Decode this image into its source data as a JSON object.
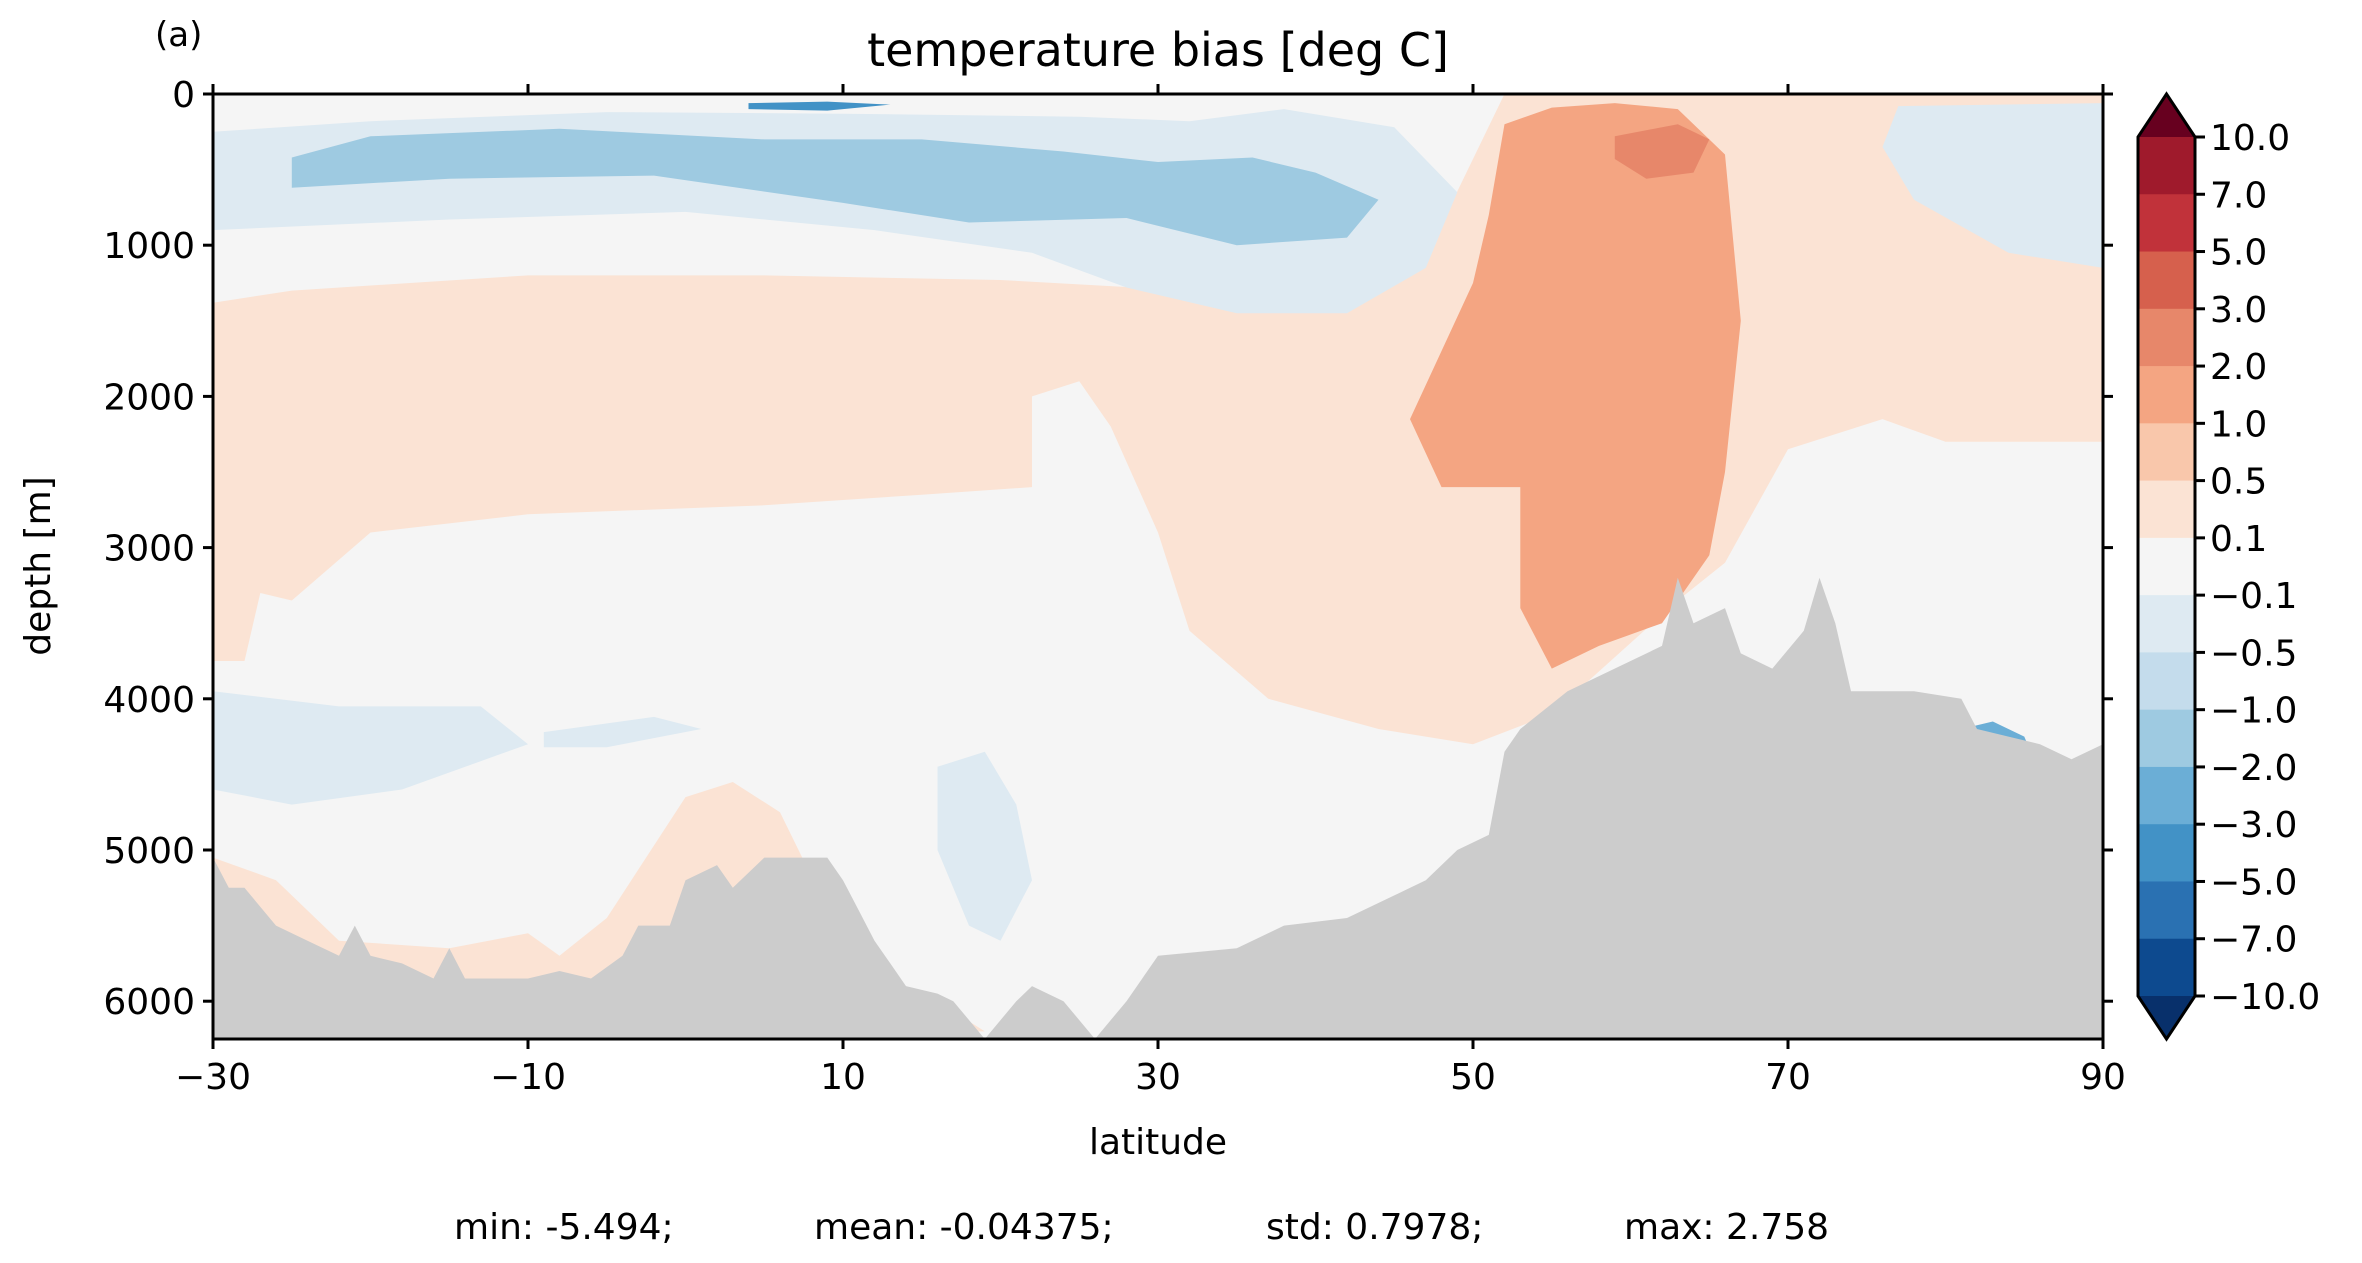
{
  "panel_label": "(a)",
  "stats_line": {
    "min": "min: -5.494;",
    "mean": "mean: -0.04375;",
    "std": "std: 0.7978;",
    "max": "max: 2.758"
  },
  "chart_data": {
    "type": "heatmap",
    "title": "temperature bias [deg C]",
    "xlabel": "latitude",
    "ylabel": "depth [m]",
    "xlim": [
      -30,
      90
    ],
    "ylim": [
      6250,
      0
    ],
    "x_ticks": [
      -30,
      -10,
      10,
      30,
      50,
      70,
      90
    ],
    "x_tick_labels": [
      "−30",
      "−10",
      "10",
      "30",
      "50",
      "70",
      "90"
    ],
    "y_ticks": [
      0,
      1000,
      2000,
      3000,
      4000,
      5000,
      6000
    ],
    "y_tick_labels": [
      "0",
      "1000",
      "2000",
      "3000",
      "4000",
      "5000",
      "6000"
    ],
    "colorbar": {
      "extend": "both",
      "levels": [
        -10,
        -7,
        -5,
        -3,
        -2,
        -1,
        -0.5,
        -0.1,
        0.1,
        0.5,
        1,
        2,
        3,
        5,
        7,
        10
      ],
      "labels": [
        "10.0",
        "7.0",
        "5.0",
        "3.0",
        "2.0",
        "1.0",
        "0.5",
        "0.1",
        "−0.1",
        "−0.5",
        "−1.0",
        "−2.0",
        "−3.0",
        "−5.0",
        "−7.0",
        "−10.0"
      ],
      "colors_top_to_bottom": [
        "#9f1a2c",
        "#c1323a",
        "#d6604d",
        "#e7876a",
        "#f4a582",
        "#f9c7ab",
        "#fbe3d4",
        "#f5f5f5",
        "#deeaf2",
        "#c4dcec",
        "#9ecae1",
        "#6baed6",
        "#4292c6",
        "#2a71b2",
        "#0d4a8f"
      ],
      "over_color": "#67001f",
      "under_color": "#08306b"
    },
    "land_color": "#cccccc",
    "field_description": "Temperature bias by latitude and depth; warm bias (0.5–2 C) core north of 50N extending to ~4000 m, cool bias (−0.5 to −1 C) in upper 1500 m from 10N to 40N, near-neutral elsewhere.",
    "regions": [
      {
        "name": "neutral",
        "value": 0,
        "poly": [
          [
            -30,
            0
          ],
          [
            90,
            0
          ],
          [
            90,
            6250
          ],
          [
            -30,
            6250
          ]
        ]
      },
      {
        "name": "warm-upper-ocean",
        "value": 0.3,
        "poly": [
          [
            -30,
            1380
          ],
          [
            -25,
            1300
          ],
          [
            -10,
            1200
          ],
          [
            5,
            1200
          ],
          [
            20,
            1230
          ],
          [
            32,
            1300
          ],
          [
            40,
            1180
          ],
          [
            48,
            860
          ],
          [
            52,
            0
          ],
          [
            90,
            0
          ],
          [
            90,
            2300
          ],
          [
            80,
            2300
          ],
          [
            76,
            2150
          ],
          [
            70,
            2350
          ],
          [
            66,
            3100
          ],
          [
            63,
            3350
          ],
          [
            55,
            4100
          ],
          [
            50,
            4300
          ],
          [
            44,
            4200
          ],
          [
            37,
            4000
          ],
          [
            32,
            3550
          ],
          [
            30,
            2900
          ],
          [
            27,
            2200
          ],
          [
            25,
            1900
          ],
          [
            22,
            2000
          ],
          [
            22,
            2600
          ],
          [
            15,
            2650
          ],
          [
            5,
            2720
          ],
          [
            -10,
            2780
          ],
          [
            -20,
            2900
          ],
          [
            -25,
            3350
          ],
          [
            -27,
            3300
          ],
          [
            -28,
            3750
          ],
          [
            -30,
            3750
          ]
        ]
      },
      {
        "name": "warm-deep-south",
        "value": 0.3,
        "poly": [
          [
            -30,
            5050
          ],
          [
            -26,
            5200
          ],
          [
            -22,
            5600
          ],
          [
            -15,
            5650
          ],
          [
            -10,
            5550
          ],
          [
            -8,
            5700
          ],
          [
            -5,
            5450
          ],
          [
            0,
            4650
          ],
          [
            3,
            4550
          ],
          [
            6,
            4750
          ],
          [
            10,
            5600
          ],
          [
            12,
            5900
          ],
          [
            16,
            6000
          ],
          [
            19,
            6200
          ],
          [
            -30,
            6200
          ]
        ]
      },
      {
        "name": "warm-core",
        "value": 1.5,
        "poly": [
          [
            52,
            200
          ],
          [
            55,
            90
          ],
          [
            59,
            60
          ],
          [
            63,
            100
          ],
          [
            66,
            400
          ],
          [
            67,
            1500
          ],
          [
            66,
            2500
          ],
          [
            65,
            3050
          ],
          [
            62,
            3500
          ],
          [
            58,
            3650
          ],
          [
            55,
            3800
          ],
          [
            53,
            3400
          ],
          [
            53,
            2600
          ],
          [
            48,
            2600
          ],
          [
            46,
            2150
          ],
          [
            50,
            1250
          ],
          [
            51,
            800
          ]
        ]
      },
      {
        "name": "warm-surface-patch",
        "value": 2.5,
        "poly": [
          [
            59,
            280
          ],
          [
            63,
            200
          ],
          [
            65,
            300
          ],
          [
            64,
            520
          ],
          [
            61,
            560
          ],
          [
            59,
            430
          ]
        ]
      },
      {
        "name": "cool-upper-south",
        "value": -0.3,
        "poly": [
          [
            -30,
            250
          ],
          [
            -20,
            180
          ],
          [
            -5,
            120
          ],
          [
            10,
            130
          ],
          [
            25,
            150
          ],
          [
            32,
            180
          ],
          [
            38,
            100
          ],
          [
            45,
            220
          ],
          [
            49,
            650
          ],
          [
            47,
            1150
          ],
          [
            42,
            1450
          ],
          [
            35,
            1450
          ],
          [
            28,
            1280
          ],
          [
            22,
            1050
          ],
          [
            12,
            900
          ],
          [
            0,
            780
          ],
          [
            -15,
            830
          ],
          [
            -30,
            900
          ]
        ]
      },
      {
        "name": "cool-upper-core",
        "value": -1.5,
        "poly": [
          [
            -25,
            420
          ],
          [
            -20,
            280
          ],
          [
            -8,
            230
          ],
          [
            5,
            300
          ],
          [
            15,
            300
          ],
          [
            24,
            380
          ],
          [
            30,
            450
          ],
          [
            36,
            420
          ],
          [
            40,
            520
          ],
          [
            44,
            700
          ],
          [
            42,
            950
          ],
          [
            35,
            1000
          ],
          [
            28,
            820
          ],
          [
            18,
            850
          ],
          [
            10,
            720
          ],
          [
            -2,
            540
          ],
          [
            -15,
            560
          ],
          [
            -25,
            620
          ]
        ]
      },
      {
        "name": "cool-surface-strip",
        "value": -3.5,
        "poly": [
          [
            4,
            60
          ],
          [
            9,
            50
          ],
          [
            13,
            70
          ],
          [
            9,
            110
          ],
          [
            4,
            100
          ]
        ]
      },
      {
        "name": "cool-upper-north",
        "value": -0.3,
        "poly": [
          [
            77,
            80
          ],
          [
            90,
            60
          ],
          [
            90,
            1150
          ],
          [
            84,
            1050
          ],
          [
            78,
            700
          ],
          [
            76,
            350
          ]
        ]
      },
      {
        "name": "cool-deep-south",
        "value": -0.3,
        "poly": [
          [
            -30,
            3950
          ],
          [
            -22,
            4050
          ],
          [
            -13,
            4050
          ],
          [
            -10,
            4300
          ],
          [
            -18,
            4600
          ],
          [
            -25,
            4700
          ],
          [
            -30,
            4600
          ]
        ]
      },
      {
        "name": "cool-deep-mid",
        "value": -0.3,
        "poly": [
          [
            -9,
            4220
          ],
          [
            -2,
            4120
          ],
          [
            1,
            4200
          ],
          [
            -5,
            4320
          ],
          [
            -9,
            4320
          ]
        ]
      },
      {
        "name": "cool-deep-column",
        "value": -0.3,
        "poly": [
          [
            16,
            4450
          ],
          [
            19,
            4350
          ],
          [
            21,
            4700
          ],
          [
            22,
            5200
          ],
          [
            20,
            5600
          ],
          [
            18,
            5500
          ],
          [
            16,
            5000
          ]
        ]
      },
      {
        "name": "cool-deep-north",
        "value": -2.5,
        "poly": [
          [
            81,
            4200
          ],
          [
            83,
            4150
          ],
          [
            85,
            4250
          ],
          [
            86,
            4500
          ],
          [
            82,
            4550
          ]
        ]
      }
    ],
    "bathymetry": [
      [
        -30,
        5050
      ],
      [
        -29,
        5250
      ],
      [
        -28,
        5250
      ],
      [
        -26,
        5500
      ],
      [
        -24,
        5600
      ],
      [
        -22,
        5700
      ],
      [
        -21,
        5500
      ],
      [
        -20,
        5700
      ],
      [
        -18,
        5750
      ],
      [
        -16,
        5850
      ],
      [
        -15,
        5650
      ],
      [
        -14,
        5850
      ],
      [
        -10,
        5850
      ],
      [
        -8,
        5800
      ],
      [
        -6,
        5850
      ],
      [
        -4,
        5700
      ],
      [
        -3,
        5500
      ],
      [
        -1,
        5500
      ],
      [
        0,
        5200
      ],
      [
        2,
        5100
      ],
      [
        3,
        5250
      ],
      [
        5,
        5050
      ],
      [
        9,
        5050
      ],
      [
        10,
        5200
      ],
      [
        11,
        5400
      ],
      [
        12,
        5600
      ],
      [
        13,
        5750
      ],
      [
        14,
        5900
      ],
      [
        16,
        5950
      ],
      [
        17,
        6000
      ],
      [
        19,
        6250
      ],
      [
        21,
        6000
      ],
      [
        22,
        5900
      ],
      [
        24,
        6000
      ],
      [
        26,
        6250
      ],
      [
        28,
        6000
      ],
      [
        30,
        5700
      ],
      [
        35,
        5650
      ],
      [
        38,
        5500
      ],
      [
        42,
        5450
      ],
      [
        45,
        5300
      ],
      [
        47,
        5200
      ],
      [
        49,
        5000
      ],
      [
        51,
        4900
      ],
      [
        52,
        4350
      ],
      [
        53,
        4200
      ],
      [
        56,
        3950
      ],
      [
        58,
        3850
      ],
      [
        62,
        3650
      ],
      [
        63,
        3200
      ],
      [
        64,
        3500
      ],
      [
        66,
        3400
      ],
      [
        67,
        3700
      ],
      [
        69,
        3800
      ],
      [
        71,
        3550
      ],
      [
        72,
        3200
      ],
      [
        73,
        3500
      ],
      [
        74,
        3950
      ],
      [
        78,
        3950
      ],
      [
        81,
        4000
      ],
      [
        82,
        4200
      ],
      [
        84,
        4250
      ],
      [
        86,
        4300
      ],
      [
        88,
        4400
      ],
      [
        90,
        4300
      ]
    ]
  }
}
